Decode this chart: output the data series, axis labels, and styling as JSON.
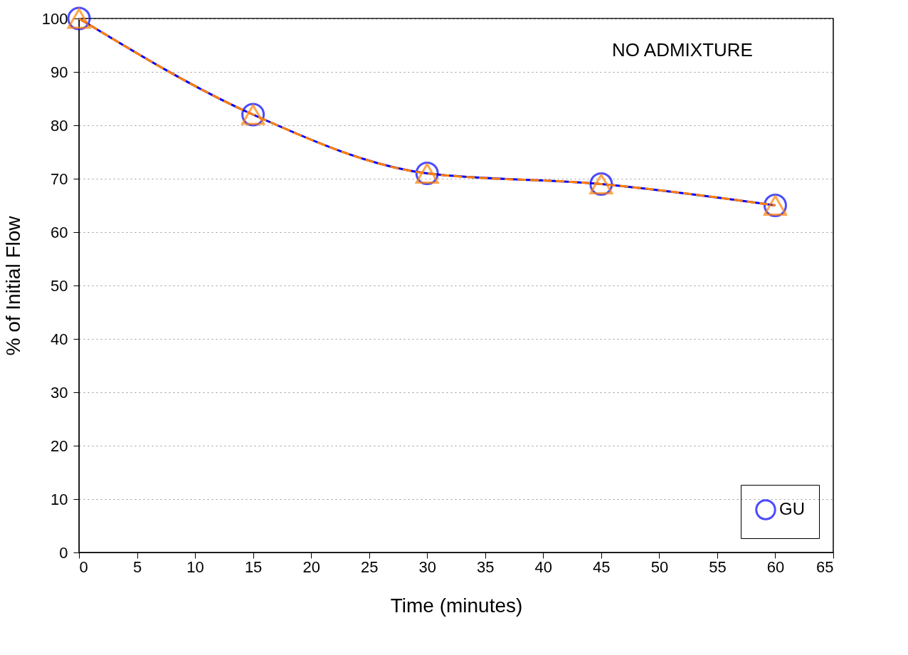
{
  "chart_data": {
    "type": "line",
    "xlabel": "Time (minutes)",
    "ylabel": "% of Initial Flow",
    "annotations": [
      "NO ADMIXTURE"
    ],
    "x": [
      0,
      15,
      30,
      45,
      60
    ],
    "series": [
      {
        "name": "GU",
        "color": "#0000ff",
        "values": [
          100,
          82,
          71,
          69,
          65
        ],
        "marker": "circle",
        "line_style": "solid"
      },
      {
        "color": "#ff8000",
        "values": [
          100,
          82,
          71,
          69,
          65
        ],
        "marker": "triangle",
        "line_style": "dashed"
      }
    ],
    "xlim": [
      0,
      65
    ],
    "xticks": [
      0,
      5,
      10,
      15,
      20,
      25,
      30,
      35,
      40,
      45,
      50,
      55,
      60,
      65
    ],
    "ylim": [
      0,
      100
    ],
    "yticks": [
      0,
      10,
      20,
      30,
      40,
      50,
      60,
      70,
      80,
      90,
      100
    ],
    "grid": "y",
    "legend": "bottom right"
  }
}
